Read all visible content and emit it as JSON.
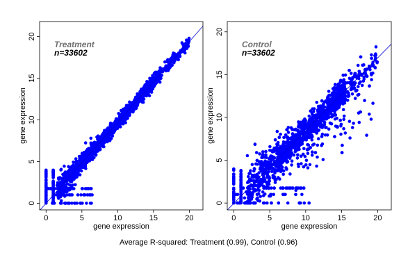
{
  "caption": "Average R-squared: Treatment (0.99), Control (0.96)",
  "chart_data": [
    {
      "type": "scatter",
      "title": "Treatment",
      "annotation": "n=33602",
      "n": 33602,
      "r_squared": 0.99,
      "xlabel": "gene expression",
      "ylabel": "gene expression",
      "xlim": [
        -0.9,
        21.9
      ],
      "ylim": [
        -0.8,
        21.8
      ],
      "xticks": [
        "0",
        "5",
        "10",
        "15",
        "20"
      ],
      "yticks": [
        "0",
        "5",
        "10",
        "15",
        "20"
      ],
      "fit_line": {
        "intercept": 0.0,
        "slope": 0.97
      },
      "point_color": "#0000ff",
      "line_color": "#0000cc",
      "title_color": "#707070",
      "grid": false
    },
    {
      "type": "scatter",
      "title": "Control",
      "annotation": "n=33602",
      "n": 33602,
      "r_squared": 0.96,
      "xlabel": "gene expression",
      "ylabel": "gene expression",
      "xlim": [
        -0.9,
        21.9
      ],
      "ylim": [
        -0.8,
        21.2
      ],
      "xticks": [
        "0",
        "5",
        "10",
        "15",
        "20"
      ],
      "yticks": [
        "0",
        "5",
        "10",
        "15",
        "20"
      ],
      "fit_line": {
        "intercept": -0.05,
        "slope": 0.85
      },
      "point_color": "#0000ff",
      "line_color": "#0000cc",
      "title_color": "#707070",
      "grid": false
    }
  ]
}
